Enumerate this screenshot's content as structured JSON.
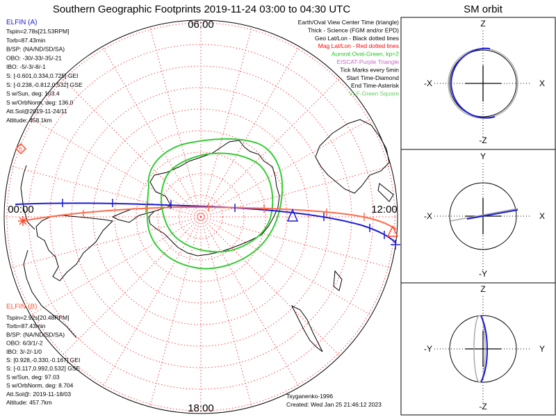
{
  "main_title": "Southern Geographic Footprints 2019-11-24 03:00 to 04:30 UTC",
  "orbit_title": "SM orbit",
  "clock_labels": {
    "top": "06:00",
    "left": "00:00",
    "right": "12:00",
    "bottom": "18:00"
  },
  "elfin_a": {
    "name": "ELFIN (A)",
    "color": "#1a1ad6",
    "lines": [
      "Tspin=2.78s[21.53RPM]",
      "Torb=87.43min",
      "B/SP: (NA/ND/SD/SA)",
      "OBO: -30/-33/-35/-21",
      "IBO: -5/-3/-8/-1",
      "S: [-0.601,0.334,0.725] GEI",
      "S: [-0.238,-0.812,0.532] GSE",
      "S w/Sun, deg: 103.4",
      "S w/OrbNorm, deg: 136.0",
      "Att.Sol@2019-11-24/11",
      "Altitude: 458.1km"
    ]
  },
  "elfin_b": {
    "name": "ELFIN (B)",
    "color": "#ff5a3c",
    "lines": [
      "Tspin=2.92s[20.48RPM]",
      "Torb=87.43min",
      "B/SP: (NA/ND/SD/SA)",
      "OBO: 6/3/1/-2",
      "IBO: 3/-2/-1/0",
      "S: [0.928,-0.330,-0.167] GEI",
      "S: [-0.117,0.992,0.532] GSE",
      "S w/Sun, deg: 97.03",
      "S w/OrbNorm, deg: 8.704",
      "Att.Sol@: 2019-11-18/03",
      "Altitude: 457.7km"
    ]
  },
  "legend": [
    {
      "text": "Earth/Oval View Center Time (triangle)",
      "color": "#000000"
    },
    {
      "text": "Thick - Science (FGM and/or EPD)",
      "color": "#000000"
    },
    {
      "text": "Geo Lat/Lon - Black dotted lines",
      "color": "#000000"
    },
    {
      "text": "Mag Lat/Lon - Red dotted lines",
      "color": "#ff0000"
    },
    {
      "text": "Auroral Oval-Green, kp=2",
      "color": "#22c522"
    },
    {
      "text": "EISCAT-Purple Triangle",
      "color": "#cc66cc"
    },
    {
      "text": "Tick Marks every 5min",
      "color": "#000000"
    },
    {
      "text": "Start Time-Diamond",
      "color": "#000000"
    },
    {
      "text": "End Time-Asterisk",
      "color": "#000000"
    },
    {
      "text": "VLF-Green Square",
      "color": "#66cc66"
    }
  ],
  "footer": {
    "model": "Tsyganenko-1996",
    "created": "Created: Wed Jan 25 21:46:12 2023"
  },
  "orbit_panels": [
    {
      "top": "Z",
      "bottom": "-Z",
      "left": "-X",
      "right": "X"
    },
    {
      "top": "Y",
      "bottom": "-Y",
      "left": "-X",
      "right": "X"
    },
    {
      "top": "Z",
      "bottom": "-Z",
      "left": "-Y",
      "right": "Y"
    }
  ],
  "colors": {
    "grid_red": "#ff4444",
    "oval_green": "#33cc33",
    "elfin_a_track": "#1a1ad6",
    "elfin_b_track": "#ff6a4a",
    "coast": "#000000"
  }
}
